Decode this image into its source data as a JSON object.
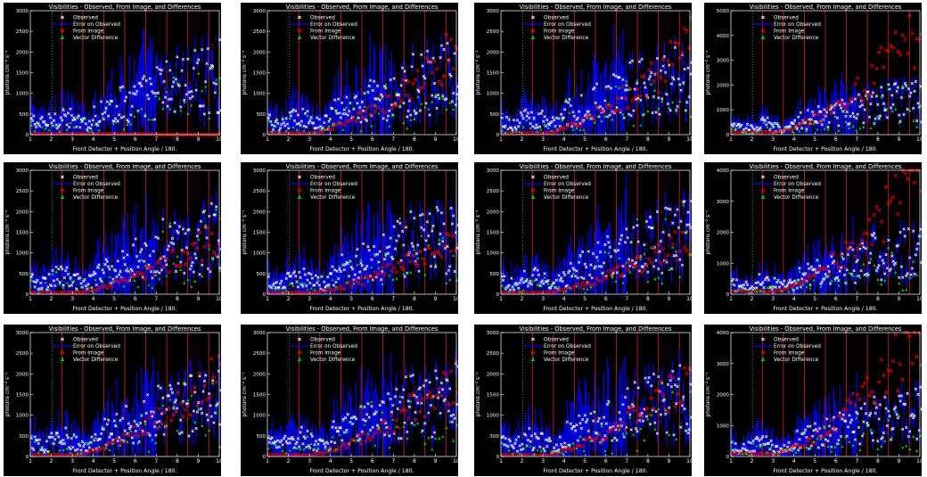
{
  "figure": {
    "panel_title": "Visibilities - Observed, From Image, and Differences",
    "xlabel": "Front Detector + Position Angle / 180.",
    "ylabel": "photons cm⁻² s⁻¹",
    "legend": {
      "observed": "Observed",
      "error": "Error on Observed",
      "image": "From Image",
      "diff": "Vector Difference"
    },
    "colors": {
      "background": "#000000",
      "axes": "#ffffff",
      "observed": "#ffffff",
      "error": "#0000ff",
      "image": "#ff0000",
      "diff": "#00ff00",
      "detector_lines": "#c02020"
    },
    "x_ticks": [
      "1",
      "2",
      "3",
      "4",
      "5",
      "6",
      "7",
      "8",
      "9",
      "10"
    ],
    "y_ticks_small": [
      "0",
      "500",
      "1000",
      "1500",
      "2000",
      "2500",
      "3000"
    ],
    "y_ticks_large_a": [
      "0",
      "1000",
      "2000",
      "3000",
      "4000",
      "5000"
    ],
    "y_ticks_large_b": [
      "0",
      "1000",
      "2000",
      "3000",
      "4000"
    ]
  },
  "chart_data": [
    {
      "type": "scatter",
      "row": 0,
      "col": 0,
      "xlim": [
        1,
        10
      ],
      "ylim": [
        0,
        3000
      ],
      "image_profile": "flat",
      "image_peak": 0,
      "title": "Visibilities - Observed, From Image, and Differences"
    },
    {
      "type": "scatter",
      "row": 0,
      "col": 1,
      "xlim": [
        1,
        10
      ],
      "ylim": [
        0,
        3000
      ],
      "image_profile": "mid",
      "image_peak": 2000,
      "title": "Visibilities - Observed, From Image, and Differences"
    },
    {
      "type": "scatter",
      "row": 0,
      "col": 2,
      "xlim": [
        1,
        10
      ],
      "ylim": [
        0,
        3000
      ],
      "image_profile": "mid",
      "image_peak": 2100,
      "title": "Visibilities - Observed, From Image, and Differences"
    },
    {
      "type": "scatter",
      "row": 0,
      "col": 3,
      "xlim": [
        1,
        10
      ],
      "ylim": [
        0,
        5000
      ],
      "image_profile": "high",
      "image_peak": 4100,
      "title": "Visibilities - Observed, From Image, and Differences"
    },
    {
      "type": "scatter",
      "row": 1,
      "col": 0,
      "xlim": [
        1,
        10
      ],
      "ylim": [
        0,
        3000
      ],
      "image_profile": "mid",
      "image_peak": 1400,
      "title": "Visibilities - Observed, From Image, and Differences"
    },
    {
      "type": "scatter",
      "row": 1,
      "col": 1,
      "xlim": [
        1,
        10
      ],
      "ylim": [
        0,
        3000
      ],
      "image_profile": "mid",
      "image_peak": 1300,
      "title": "Visibilities - Observed, From Image, and Differences"
    },
    {
      "type": "scatter",
      "row": 1,
      "col": 2,
      "xlim": [
        1,
        10
      ],
      "ylim": [
        0,
        3000
      ],
      "image_profile": "mid",
      "image_peak": 1300,
      "title": "Visibilities - Observed, From Image, and Differences"
    },
    {
      "type": "scatter",
      "row": 1,
      "col": 3,
      "xlim": [
        1,
        10
      ],
      "ylim": [
        0,
        4000
      ],
      "image_profile": "high",
      "image_peak": 3800,
      "title": "Visibilities - Observed, From Image, and Differences"
    },
    {
      "type": "scatter",
      "row": 2,
      "col": 0,
      "xlim": [
        1,
        10
      ],
      "ylim": [
        0,
        3000
      ],
      "image_profile": "mid",
      "image_peak": 1900,
      "title": "Visibilities - Observed, From Image, and Differences"
    },
    {
      "type": "scatter",
      "row": 2,
      "col": 1,
      "xlim": [
        1,
        10
      ],
      "ylim": [
        0,
        3000
      ],
      "image_profile": "mid",
      "image_peak": 1900,
      "title": "Visibilities - Observed, From Image, and Differences"
    },
    {
      "type": "scatter",
      "row": 2,
      "col": 2,
      "xlim": [
        1,
        10
      ],
      "ylim": [
        0,
        3000
      ],
      "image_profile": "mid",
      "image_peak": 1850,
      "title": "Visibilities - Observed, From Image, and Differences"
    },
    {
      "type": "scatter",
      "row": 2,
      "col": 3,
      "xlim": [
        1,
        10
      ],
      "ylim": [
        0,
        4000
      ],
      "image_profile": "high",
      "image_peak": 3900,
      "title": "Visibilities - Observed, From Image, and Differences"
    }
  ]
}
